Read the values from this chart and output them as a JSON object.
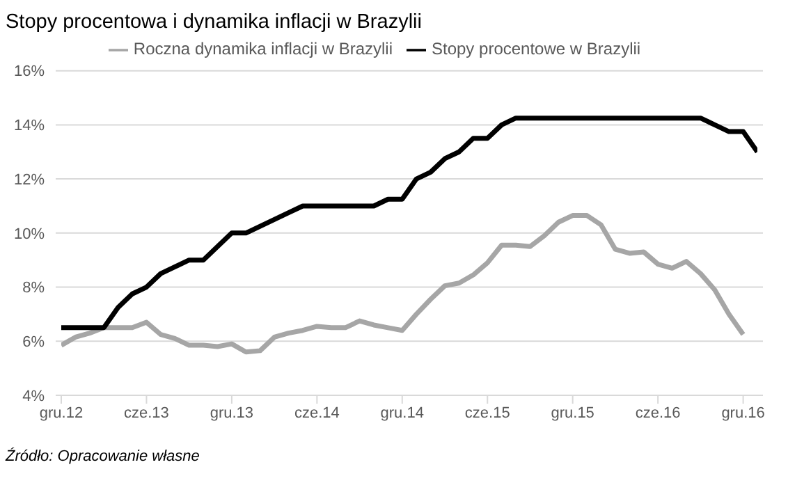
{
  "chart_data": {
    "type": "line",
    "title": "Stopy procentowa i dynamika inflacji w Brazylii",
    "annotations": [
      "Źródło: Opracowanie własne"
    ],
    "categories": [
      "gru.12",
      null,
      null,
      null,
      null,
      null,
      "cze.13",
      null,
      null,
      null,
      null,
      null,
      "gru.13",
      null,
      null,
      null,
      null,
      null,
      "cze.14",
      null,
      null,
      null,
      null,
      null,
      "gru.14",
      null,
      null,
      null,
      null,
      null,
      "cze.15",
      null,
      null,
      null,
      null,
      null,
      "gru.15",
      null,
      null,
      null,
      null,
      null,
      "cze.16",
      null,
      null,
      null,
      null,
      null,
      "gru.16",
      null
    ],
    "series": [
      {
        "name": "Roczna dynamika inflacji w Brazylii",
        "color": "#a6a6a6",
        "values": [
          5.85,
          6.15,
          6.3,
          6.5,
          6.5,
          6.5,
          6.7,
          6.25,
          6.1,
          5.85,
          5.85,
          5.8,
          5.9,
          5.6,
          5.65,
          6.15,
          6.3,
          6.4,
          6.55,
          6.5,
          6.5,
          6.75,
          6.6,
          6.5,
          6.4,
          7.0,
          7.55,
          8.05,
          8.15,
          8.45,
          8.9,
          9.55,
          9.55,
          9.5,
          9.9,
          10.4,
          10.65,
          10.65,
          10.3,
          9.4,
          9.25,
          9.3,
          8.85,
          8.7,
          8.95,
          8.5,
          7.9,
          7.0,
          6.25,
          null
        ]
      },
      {
        "name": "Stopy procentowe w Brazylii",
        "color": "#000000",
        "values": [
          6.5,
          6.5,
          6.5,
          6.5,
          7.25,
          7.75,
          8.0,
          8.5,
          8.75,
          9.0,
          9.0,
          9.5,
          10.0,
          10.0,
          10.25,
          10.5,
          10.75,
          11.0,
          11.0,
          11.0,
          11.0,
          11.0,
          11.0,
          11.25,
          11.25,
          12.0,
          12.25,
          12.75,
          13.0,
          13.5,
          13.5,
          14.0,
          14.25,
          14.25,
          14.25,
          14.25,
          14.25,
          14.25,
          14.25,
          14.25,
          14.25,
          14.25,
          14.25,
          14.25,
          14.25,
          14.25,
          14.0,
          13.75,
          13.75,
          13.0
        ]
      }
    ],
    "ylim": [
      4,
      16
    ],
    "yticks": [
      {
        "value": 4,
        "label": "4%"
      },
      {
        "value": 6,
        "label": "6%"
      },
      {
        "value": 8,
        "label": "8%"
      },
      {
        "value": 10,
        "label": "10%"
      },
      {
        "value": 12,
        "label": "12%"
      },
      {
        "value": 14,
        "label": "14%"
      },
      {
        "value": 16,
        "label": "16%"
      }
    ],
    "grid": "y",
    "legend": "top",
    "marker": "none",
    "line_style": "solid"
  }
}
